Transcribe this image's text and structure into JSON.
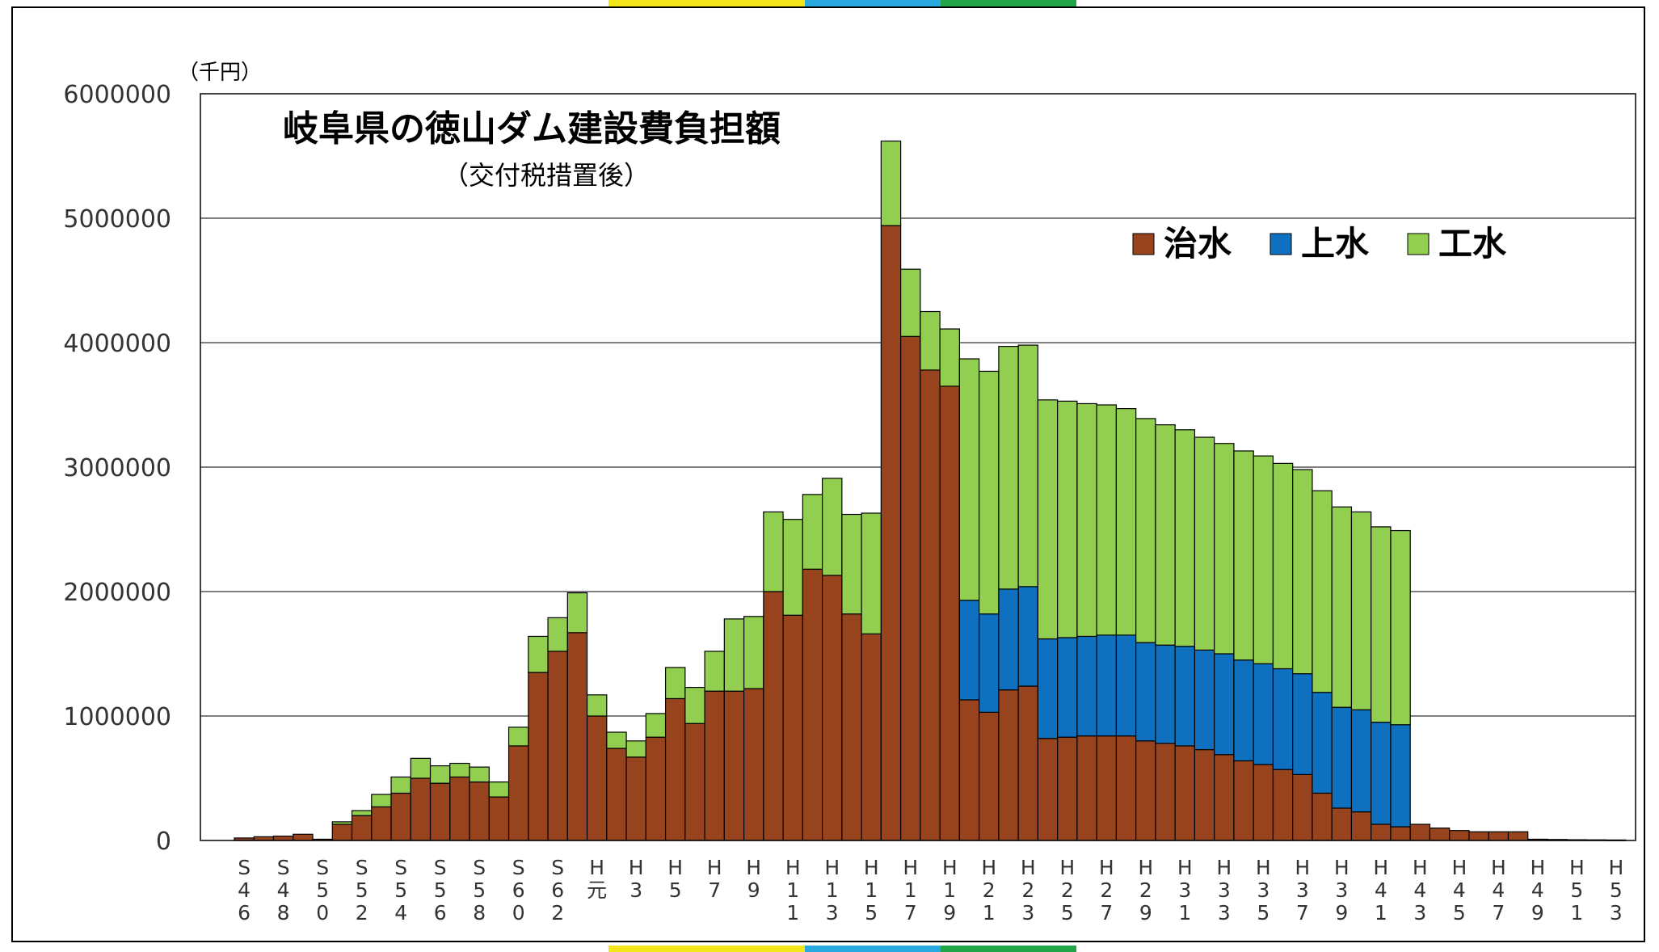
{
  "colors": {
    "flood": "#97431E",
    "water_supply": "#0F70C0",
    "industrial": "#92CE50",
    "stripe_yellow": "#F2E61B",
    "stripe_blue": "#2AA8E0",
    "stripe_green": "#21A548"
  },
  "chart_data": {
    "type": "bar",
    "stacked": true,
    "title": "岐阜県の徳山ダム建設費負担額",
    "subtitle": "（交付税措置後）",
    "unit_label": "（千円）",
    "xlabel": "",
    "ylabel": "",
    "ylim": [
      0,
      6000000
    ],
    "yticks": [
      "0",
      "1000000",
      "2000000",
      "3000000",
      "4000000",
      "5000000",
      "6000000"
    ],
    "grid": true,
    "legend_position": "top-right",
    "categories": [
      "S46",
      "S47",
      "S48",
      "S49",
      "S50",
      "S51",
      "S52",
      "S53",
      "S54",
      "S55",
      "S56",
      "S57",
      "S58",
      "S59",
      "S60",
      "S61",
      "S62",
      "S63",
      "H元",
      "H2",
      "H3",
      "H4",
      "H5",
      "H6",
      "H7",
      "H8",
      "H9",
      "H10",
      "H11",
      "H12",
      "H13",
      "H14",
      "H15",
      "H16",
      "H17",
      "H18",
      "H19",
      "H20",
      "H21",
      "H22",
      "H23",
      "H24",
      "H25",
      "H26",
      "H27",
      "H28",
      "H29",
      "H30",
      "H31",
      "H32",
      "H33",
      "H34",
      "H35",
      "H36",
      "H37",
      "H38",
      "H39",
      "H40",
      "H41",
      "H42",
      "H43",
      "H44",
      "H45",
      "H46",
      "H47",
      "H48",
      "H49",
      "H50",
      "H51",
      "H52",
      "H53"
    ],
    "tick_labels": [
      "S46",
      "",
      "S48",
      "",
      "S50",
      "",
      "S52",
      "",
      "S54",
      "",
      "S56",
      "",
      "S58",
      "",
      "S60",
      "",
      "S62",
      "",
      "H元",
      "",
      "H3",
      "",
      "H5",
      "",
      "H7",
      "",
      "H9",
      "",
      "H11",
      "",
      "H13",
      "",
      "H15",
      "",
      "H17",
      "",
      "H19",
      "",
      "H21",
      "",
      "H23",
      "",
      "H25",
      "",
      "H27",
      "",
      "H29",
      "",
      "H31",
      "",
      "H33",
      "",
      "H35",
      "",
      "H37",
      "",
      "H39",
      "",
      "H41",
      "",
      "H43",
      "",
      "H45",
      "",
      "H47",
      "",
      "H49",
      "",
      "H51",
      "",
      "H53"
    ],
    "series": [
      {
        "name": "治水",
        "color_key": "flood",
        "values": [
          20000,
          30000,
          35000,
          50000,
          10000,
          130000,
          200000,
          270000,
          380000,
          500000,
          460000,
          510000,
          470000,
          350000,
          760000,
          1350000,
          1520000,
          1670000,
          1000000,
          740000,
          670000,
          830000,
          1140000,
          940000,
          1200000,
          1200000,
          1220000,
          2000000,
          1810000,
          2180000,
          2130000,
          1820000,
          1660000,
          4940000,
          4050000,
          3780000,
          3650000,
          1130000,
          1030000,
          1210000,
          1240000,
          820000,
          830000,
          840000,
          840000,
          840000,
          800000,
          780000,
          760000,
          730000,
          690000,
          640000,
          610000,
          570000,
          530000,
          380000,
          260000,
          230000,
          130000,
          110000,
          0,
          0,
          0,
          0,
          0,
          0,
          0,
          0,
          0,
          0,
          0
        ]
      },
      {
        "name": "上水",
        "color_key": "water_supply",
        "values": [
          0,
          0,
          0,
          0,
          0,
          0,
          0,
          0,
          0,
          0,
          0,
          0,
          0,
          0,
          0,
          0,
          0,
          0,
          0,
          0,
          0,
          0,
          0,
          0,
          0,
          0,
          0,
          0,
          0,
          0,
          0,
          0,
          0,
          0,
          0,
          0,
          0,
          800000,
          790000,
          810000,
          800000,
          800000,
          800000,
          800000,
          810000,
          810000,
          790000,
          790000,
          800000,
          800000,
          810000,
          810000,
          810000,
          810000,
          810000,
          810000,
          810000,
          820000,
          820000,
          820000,
          0,
          0,
          0,
          0,
          0,
          0,
          0,
          0,
          0,
          0,
          0
        ]
      },
      {
        "name": "工水",
        "color_key": "industrial",
        "values": [
          0,
          0,
          0,
          0,
          0,
          20000,
          40000,
          100000,
          130000,
          160000,
          140000,
          110000,
          120000,
          120000,
          150000,
          290000,
          270000,
          320000,
          170000,
          130000,
          130000,
          190000,
          250000,
          290000,
          320000,
          580000,
          580000,
          640000,
          770000,
          600000,
          780000,
          800000,
          970000,
          680000,
          540000,
          470000,
          460000,
          1940000,
          1950000,
          1950000,
          1940000,
          1920000,
          1900000,
          1870000,
          1850000,
          1820000,
          1800000,
          1770000,
          1740000,
          1710000,
          1690000,
          1680000,
          1670000,
          1650000,
          1640000,
          1620000,
          1610000,
          1590000,
          1570000,
          1560000,
          0,
          0,
          0,
          0,
          0,
          0,
          0,
          0,
          0,
          0,
          0
        ]
      },
      {
        "name": "",
        "color_key": "flood",
        "note_tail": true,
        "values": [
          0,
          0,
          0,
          0,
          0,
          0,
          0,
          0,
          0,
          0,
          0,
          0,
          0,
          0,
          0,
          0,
          0,
          0,
          0,
          0,
          0,
          0,
          0,
          0,
          0,
          0,
          0,
          0,
          0,
          0,
          0,
          0,
          0,
          0,
          0,
          0,
          0,
          0,
          0,
          0,
          0,
          0,
          0,
          0,
          0,
          0,
          0,
          0,
          0,
          0,
          0,
          0,
          0,
          0,
          0,
          0,
          0,
          0,
          0,
          0,
          130000,
          100000,
          80000,
          70000,
          70000,
          70000,
          10000,
          8000,
          6000,
          5000,
          4000
        ]
      }
    ]
  }
}
